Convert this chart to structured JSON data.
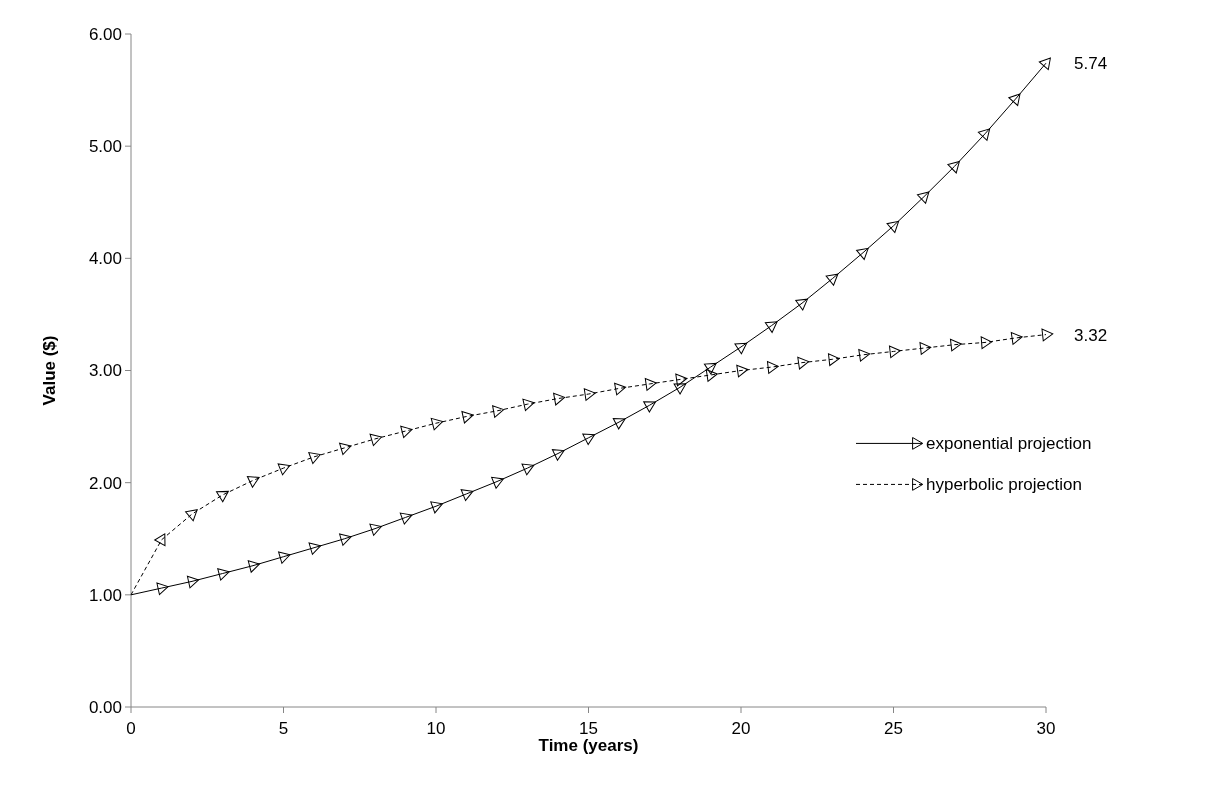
{
  "chart_data": {
    "type": "line",
    "xlabel": "Time (years)",
    "ylabel": "Value ($)",
    "x": [
      0,
      1,
      2,
      3,
      4,
      5,
      6,
      7,
      8,
      9,
      10,
      11,
      12,
      13,
      14,
      15,
      16,
      17,
      18,
      19,
      20,
      21,
      22,
      23,
      24,
      25,
      26,
      27,
      28,
      29,
      30
    ],
    "series": [
      {
        "name": "exponential projection",
        "color": "#000000",
        "line_style": "solid",
        "values": [
          1.0,
          1.06,
          1.12,
          1.19,
          1.26,
          1.34,
          1.42,
          1.5,
          1.59,
          1.69,
          1.79,
          1.9,
          2.01,
          2.13,
          2.26,
          2.4,
          2.54,
          2.69,
          2.85,
          3.03,
          3.21,
          3.4,
          3.6,
          3.82,
          4.05,
          4.29,
          4.55,
          4.82,
          5.11,
          5.42,
          5.74
        ],
        "value_labels": [
          null,
          null,
          null,
          null,
          null,
          null,
          null,
          null,
          null,
          null,
          null,
          null,
          null,
          null,
          null,
          null,
          null,
          null,
          null,
          null,
          null,
          null,
          null,
          null,
          null,
          null,
          null,
          null,
          null,
          null,
          "5.74"
        ]
      },
      {
        "name": "hyperbolic projection",
        "color": "#000000",
        "line_style": "dashed",
        "values": [
          1.0,
          1.49,
          1.72,
          1.89,
          2.02,
          2.13,
          2.23,
          2.31,
          2.39,
          2.46,
          2.53,
          2.59,
          2.64,
          2.7,
          2.75,
          2.79,
          2.84,
          2.88,
          2.92,
          2.96,
          3.0,
          3.03,
          3.07,
          3.1,
          3.14,
          3.17,
          3.2,
          3.23,
          3.25,
          3.29,
          3.32
        ],
        "value_labels": [
          null,
          null,
          null,
          null,
          null,
          null,
          null,
          null,
          null,
          null,
          null,
          null,
          null,
          null,
          null,
          null,
          null,
          null,
          null,
          null,
          null,
          null,
          null,
          null,
          null,
          null,
          null,
          null,
          null,
          null,
          "3.32"
        ]
      }
    ],
    "xlim": [
      0,
      30
    ],
    "xticks": [
      0,
      5,
      10,
      15,
      20,
      25,
      30
    ],
    "ylim": [
      0,
      6
    ],
    "yticks": [
      {
        "value": 0,
        "label": "0.00"
      },
      {
        "value": 1,
        "label": "1.00"
      },
      {
        "value": 2,
        "label": "2.00"
      },
      {
        "value": 3,
        "label": "3.00"
      },
      {
        "value": 4,
        "label": "4.00"
      },
      {
        "value": 5,
        "label": "5.00"
      },
      {
        "value": 6,
        "label": "6.00"
      }
    ],
    "grid": false,
    "legend": "right",
    "marker": "triangle"
  }
}
